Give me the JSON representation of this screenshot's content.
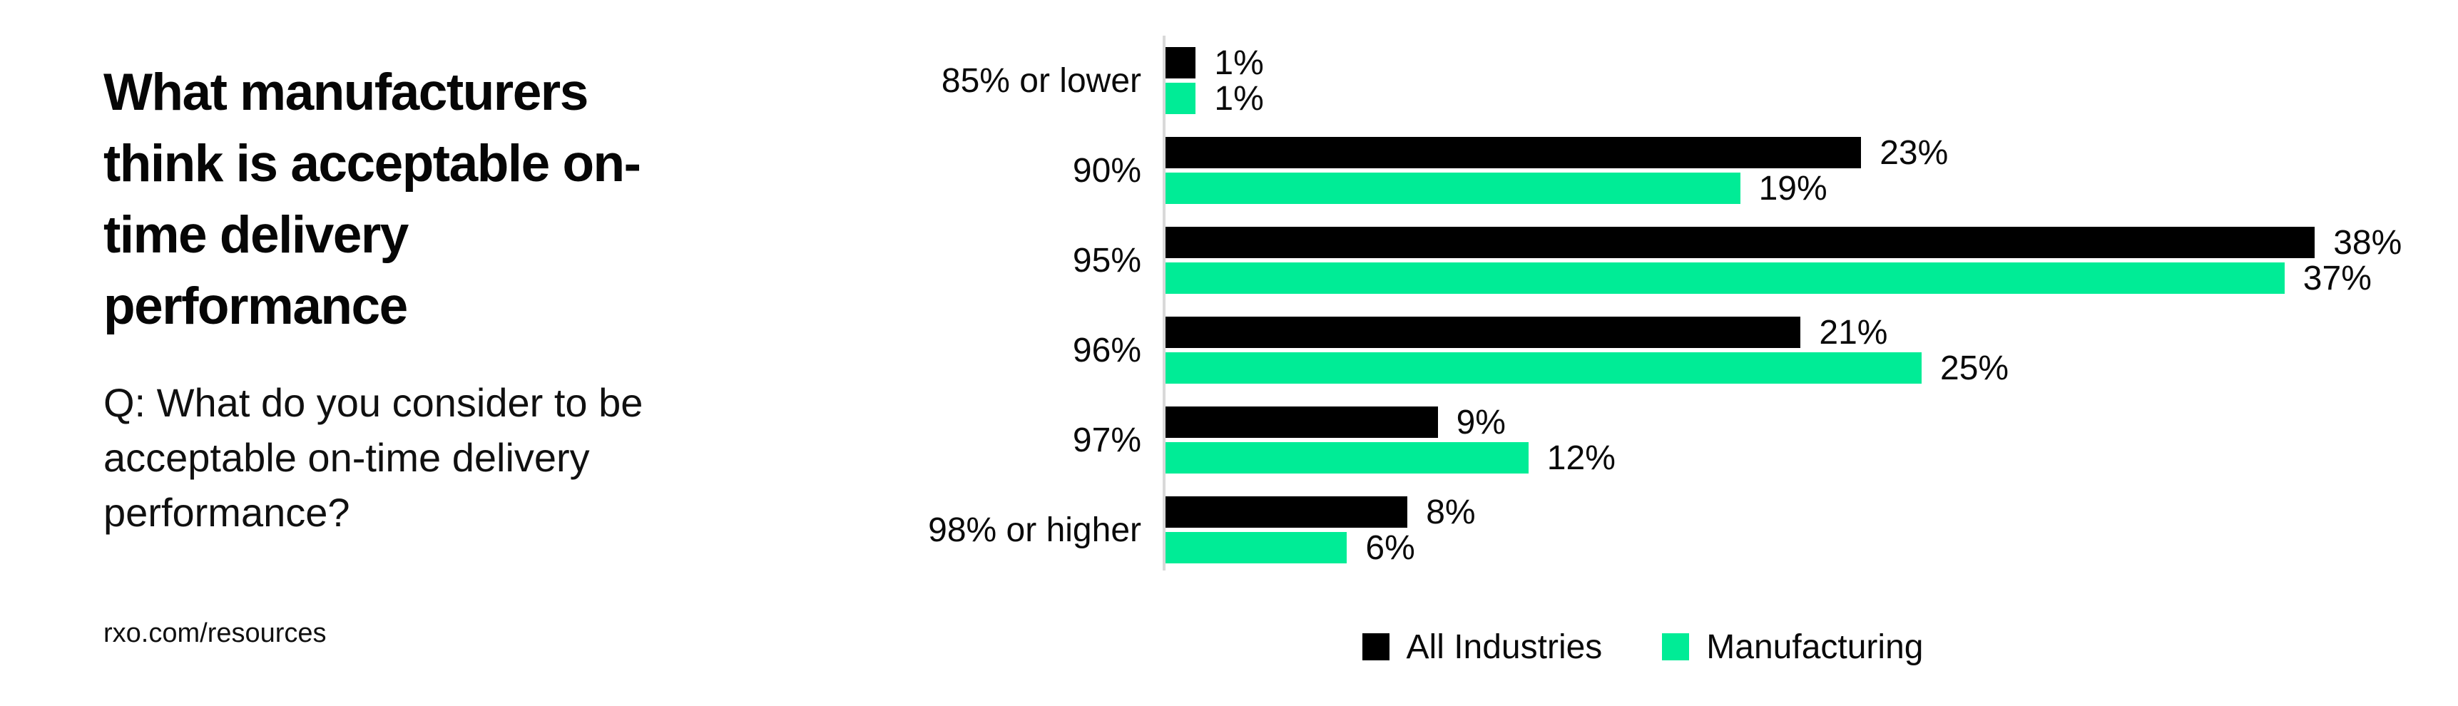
{
  "left_panel": {
    "title_lines": [
      "What manufacturers",
      "think is acceptable on-",
      "time delivery",
      "performance"
    ],
    "question_lines": [
      "Q: What do you consider to be",
      "acceptable on-time delivery",
      "performance?"
    ],
    "source": "rxo.com/resources"
  },
  "chart_data": {
    "type": "bar",
    "orientation": "horizontal",
    "title": "What manufacturers think is acceptable on-time delivery performance",
    "subtitle": "Q: What do you consider to be acceptable on-time delivery performance?",
    "categories": [
      "85% or lower",
      "90%",
      "95%",
      "96%",
      "97%",
      "98% or higher"
    ],
    "series": [
      {
        "name": "All Industries",
        "color": "#000000",
        "values": [
          1,
          23,
          38,
          21,
          9,
          8
        ]
      },
      {
        "name": "Manufacturing",
        "color": "#00EC96",
        "values": [
          1,
          19,
          37,
          25,
          12,
          6
        ]
      }
    ],
    "value_suffix": "%",
    "xlim": [
      0,
      42
    ],
    "grid": "off",
    "legend_position": "bottom",
    "axis_color": "#D9D9D9",
    "background_color": "#FFFFFF"
  }
}
